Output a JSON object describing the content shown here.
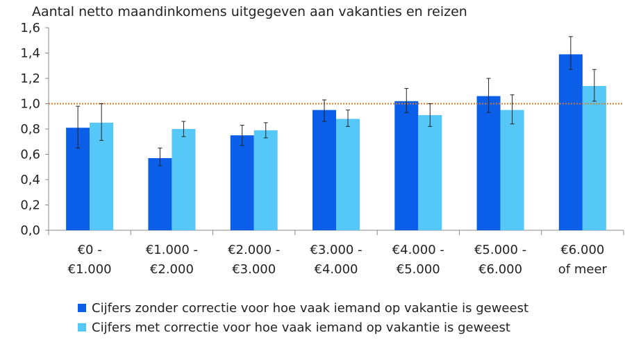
{
  "chart_data": {
    "type": "bar",
    "title": "Aantal netto maandinkomens uitgegeven aan vakanties en reizen",
    "categories": [
      [
        "€0 -",
        "€1.000"
      ],
      [
        "€1.000 -",
        "€2.000"
      ],
      [
        "€2.000 -",
        "€3.000"
      ],
      [
        "€3.000 -",
        "€4.000"
      ],
      [
        "€4.000 -",
        "€5.000"
      ],
      [
        "€5.000 -",
        "€6.000"
      ],
      [
        "€6.000",
        "of meer"
      ]
    ],
    "series": [
      {
        "name": "Cijfers zonder correctie voor hoe vaak iemand op vakantie is geweest",
        "color": "#0a5ee8",
        "values": [
          0.81,
          0.57,
          0.75,
          0.95,
          1.02,
          1.06,
          1.39
        ],
        "error_low": [
          0.65,
          0.51,
          0.67,
          0.86,
          0.93,
          0.93,
          1.27
        ],
        "error_high": [
          0.98,
          0.65,
          0.83,
          1.03,
          1.12,
          1.2,
          1.53
        ]
      },
      {
        "name": "Cijfers met correctie voor hoe vaak iemand op vakantie is geweest",
        "color": "#55c8f8",
        "values": [
          0.85,
          0.8,
          0.79,
          0.88,
          0.91,
          0.95,
          1.14
        ],
        "error_low": [
          0.71,
          0.74,
          0.73,
          0.82,
          0.82,
          0.84,
          1.02
        ],
        "error_high": [
          1.0,
          0.86,
          0.85,
          0.95,
          1.0,
          1.07,
          1.27
        ]
      }
    ],
    "ylim": [
      0,
      1.6
    ],
    "yticks": [
      "0,0",
      "0,2",
      "0,4",
      "0,6",
      "0,8",
      "1,0",
      "1,2",
      "1,4",
      "1,6"
    ],
    "reference_line": {
      "value": 1.0,
      "color": "#e8731a",
      "style": "dotted"
    },
    "grid": false,
    "legend_position": "bottom"
  }
}
